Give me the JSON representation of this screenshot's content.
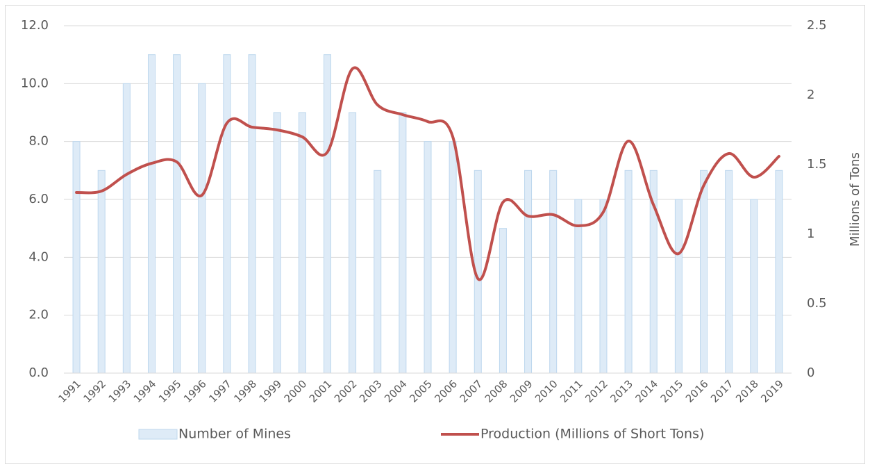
{
  "chart_data": {
    "type": "bar",
    "categories": [
      "1991",
      "1992",
      "1993",
      "1994",
      "1995",
      "1996",
      "1997",
      "1998",
      "1999",
      "2000",
      "2001",
      "2002",
      "2003",
      "2004",
      "2005",
      "2006",
      "2007",
      "2008",
      "2009",
      "2010",
      "2011",
      "2012",
      "2013",
      "2014",
      "2015",
      "2016",
      "2017",
      "2018",
      "2019"
    ],
    "series": [
      {
        "name": "Number of Mines",
        "type": "bar",
        "color": "#deebf7",
        "values": [
          8,
          7,
          10,
          11,
          11,
          10,
          11,
          11,
          9,
          9,
          11,
          9,
          7,
          9,
          8,
          8,
          7,
          5,
          7,
          7,
          6,
          6,
          7,
          7,
          6,
          7,
          7,
          6,
          7
        ]
      },
      {
        "name": "Production (Millions of Short Tons)",
        "type": "line",
        "axis": "y2",
        "color": "#c0504d",
        "values": [
          1.3,
          1.31,
          1.43,
          1.51,
          1.52,
          1.28,
          1.8,
          1.77,
          1.75,
          1.7,
          1.59,
          2.19,
          1.93,
          1.86,
          1.81,
          1.7,
          0.68,
          1.23,
          1.13,
          1.14,
          1.06,
          1.16,
          1.67,
          1.21,
          0.86,
          1.35,
          1.58,
          1.41,
          1.56
        ]
      }
    ],
    "ylim": [
      0,
      12
    ],
    "yticks": [
      {
        "value": 0,
        "label": "0.0"
      },
      {
        "value": 2,
        "label": "2.0"
      },
      {
        "value": 4,
        "label": "4.0"
      },
      {
        "value": 6,
        "label": "6.0"
      },
      {
        "value": 8,
        "label": "8.0"
      },
      {
        "value": 10,
        "label": "10.0"
      },
      {
        "value": 12,
        "label": "12.0"
      }
    ],
    "y2lim": [
      0,
      2.5
    ],
    "y2ticks": [
      0,
      0.5,
      1,
      1.5,
      2,
      2.5
    ],
    "y2_label": "Millions of Tons",
    "grid": true,
    "legend": "bottom"
  }
}
